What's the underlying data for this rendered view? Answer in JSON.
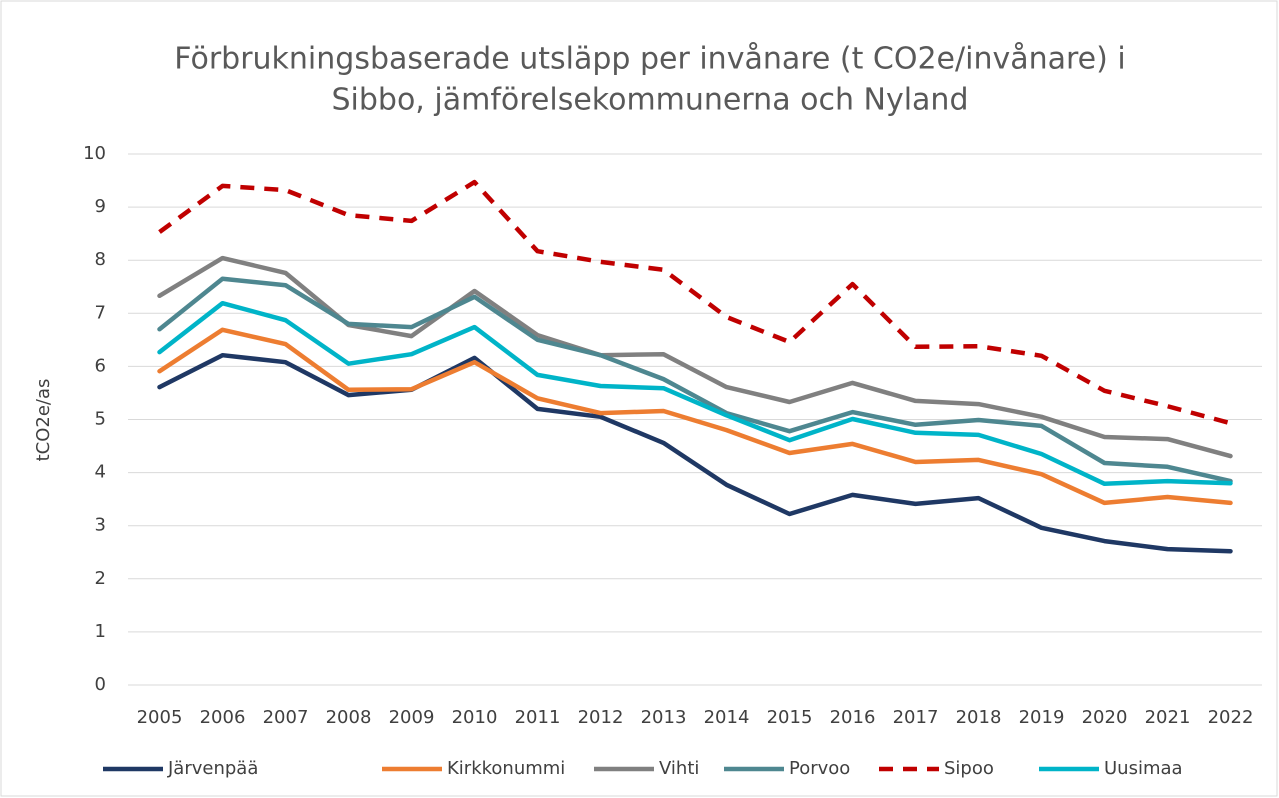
{
  "chart_data": {
    "type": "line",
    "title": [
      "Förbrukningsbaserade utsläpp per invånare (t CO2e/invånare) i",
      "Sibbo, jämförelsekommunerna och Nyland"
    ],
    "y_label": "tCO2e/as",
    "categories": [
      "2005",
      "2006",
      "2007",
      "2008",
      "2009",
      "2010",
      "2011",
      "2012",
      "2013",
      "2014",
      "2015",
      "2016",
      "2017",
      "2018",
      "2019",
      "2020",
      "2021",
      "2022"
    ],
    "ylim": [
      0,
      10
    ],
    "yticks": [
      0,
      1,
      2,
      3,
      4,
      5,
      6,
      7,
      8,
      9,
      10
    ],
    "grid": true,
    "legend": "bottom",
    "series": [
      {
        "name": "Järvenpää",
        "color": "#1f3864",
        "values": [
          5.61,
          6.21,
          6.08,
          5.46,
          5.56,
          6.16,
          5.2,
          5.05,
          4.56,
          3.77,
          3.22,
          3.58,
          3.41,
          3.52,
          2.96,
          2.71,
          2.56,
          2.52
        ]
      },
      {
        "name": "Kirkkonummi",
        "color": "#ed7d31",
        "values": [
          5.91,
          6.69,
          6.42,
          5.56,
          5.57,
          6.08,
          5.4,
          5.12,
          5.16,
          4.8,
          4.37,
          4.54,
          4.2,
          4.24,
          3.97,
          3.43,
          3.54,
          3.43
        ]
      },
      {
        "name": "Vihti",
        "color": "#808080",
        "values": [
          7.33,
          8.04,
          7.76,
          6.78,
          6.57,
          7.42,
          6.59,
          6.21,
          6.23,
          5.61,
          5.33,
          5.69,
          5.35,
          5.29,
          5.05,
          4.67,
          4.63,
          4.31
        ]
      },
      {
        "name": "Porvoo",
        "color": "#4e8790",
        "values": [
          6.7,
          7.65,
          7.53,
          6.8,
          6.74,
          7.31,
          6.5,
          6.21,
          5.76,
          5.12,
          4.78,
          5.14,
          4.9,
          4.99,
          4.88,
          4.18,
          4.11,
          3.84
        ]
      },
      {
        "name": "Sipoo",
        "color": "#c00000",
        "dashed": true,
        "values": [
          8.53,
          9.4,
          9.32,
          8.85,
          8.74,
          9.47,
          8.17,
          7.97,
          7.82,
          6.93,
          6.46,
          7.55,
          6.37,
          6.38,
          6.2,
          5.54,
          5.25,
          4.93
        ]
      },
      {
        "name": "Uusimaa",
        "color": "#00b4c8",
        "values": [
          6.27,
          7.19,
          6.87,
          6.05,
          6.23,
          6.74,
          5.84,
          5.63,
          5.59,
          5.08,
          4.61,
          5.01,
          4.75,
          4.71,
          4.35,
          3.79,
          3.84,
          3.8
        ]
      }
    ]
  }
}
